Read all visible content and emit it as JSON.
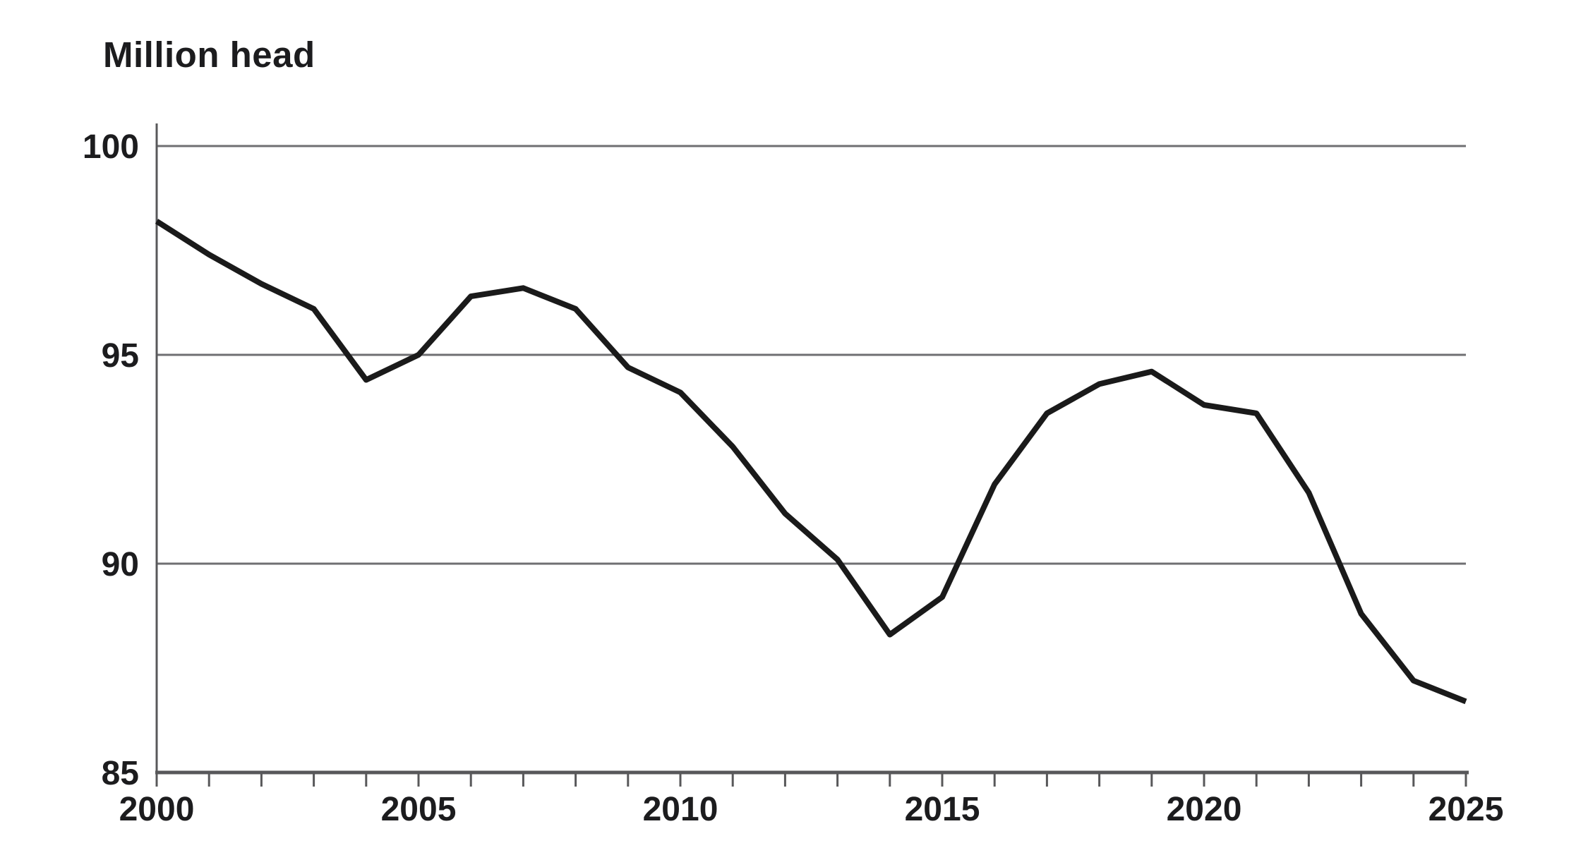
{
  "chart_data": {
    "type": "line",
    "title": "Million head",
    "x": [
      2000,
      2001,
      2002,
      2003,
      2004,
      2005,
      2006,
      2007,
      2008,
      2009,
      2010,
      2011,
      2012,
      2013,
      2014,
      2015,
      2016,
      2017,
      2018,
      2019,
      2020,
      2021,
      2022,
      2023,
      2024,
      2025
    ],
    "values": [
      98.2,
      97.4,
      96.7,
      96.1,
      94.4,
      95.0,
      96.4,
      96.6,
      96.1,
      94.7,
      94.1,
      92.8,
      91.2,
      90.1,
      88.3,
      89.2,
      91.9,
      93.6,
      94.3,
      94.6,
      93.8,
      93.6,
      91.7,
      88.8,
      87.2,
      86.7
    ],
    "xlim": [
      2000,
      2025
    ],
    "ylim": [
      85,
      100
    ],
    "xticks": [
      2000,
      2005,
      2010,
      2015,
      2020,
      2025
    ],
    "yticks": [
      85,
      90,
      95,
      100
    ],
    "gridlines_y": [
      90,
      95,
      100
    ],
    "minor_xticks_every_year": true,
    "grid": "horizontal-only",
    "legend": "none",
    "line_color": "#1a1a1a",
    "grid_color": "#6f6f72",
    "axis_color": "#58585a",
    "text_color": "#1c1c1e"
  }
}
